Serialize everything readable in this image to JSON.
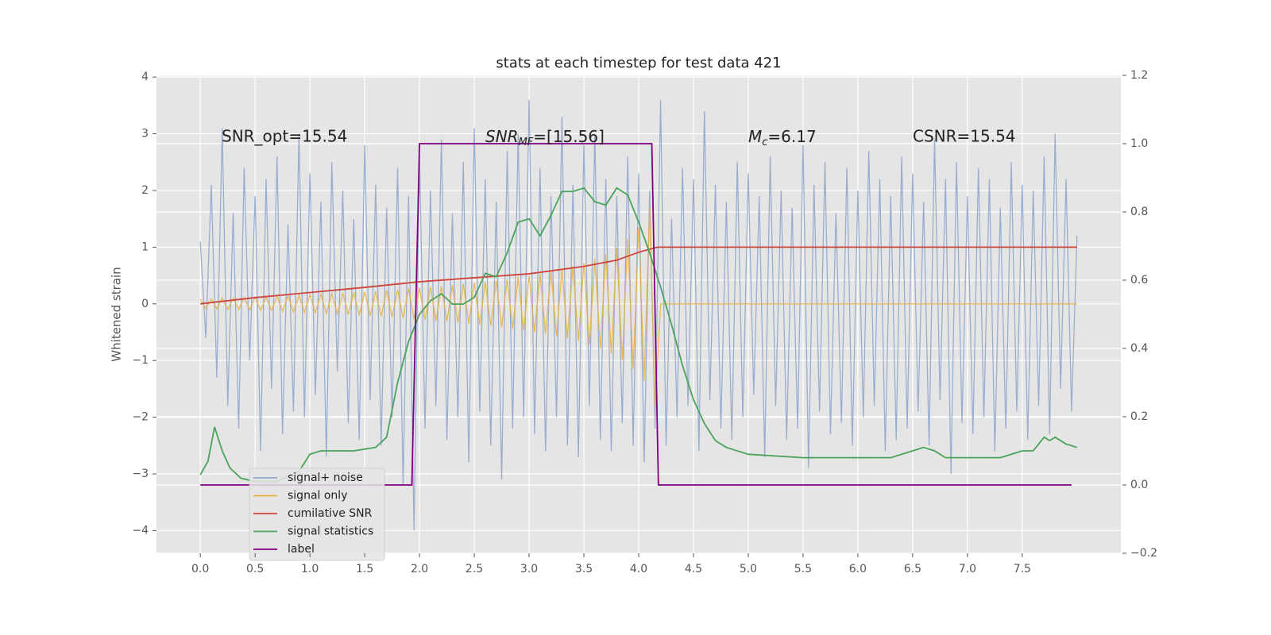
{
  "chart_data": {
    "type": "line",
    "title": "stats at each timestep for test data 421",
    "y_label": "Whitened strain",
    "annotations": [
      {
        "text": "SNR_opt=15.54"
      },
      {
        "text": "SNR",
        "sub": "MF",
        "rest": "=[15.56]"
      },
      {
        "text": "M",
        "sub": "c",
        "rest": "=6.17"
      },
      {
        "text": "CSNR=15.54"
      }
    ],
    "xlim": [
      -0.4,
      8.4
    ],
    "xticks": [
      {
        "value": 0,
        "label": "0.0"
      },
      0.5,
      {
        "value": 1,
        "label": "1.0"
      },
      1.5,
      {
        "value": 2,
        "label": "2.0"
      },
      2.5,
      {
        "value": 3,
        "label": "3.0"
      },
      3.5,
      {
        "value": 4,
        "label": "4.0"
      },
      4.5,
      {
        "value": 5,
        "label": "5.0"
      },
      5.5,
      {
        "value": 6,
        "label": "6.0"
      },
      6.5,
      {
        "value": 7,
        "label": "7.0"
      },
      7.5
    ],
    "ylim": [
      -4.4,
      4.03
    ],
    "yticks": [
      {
        "value": -4,
        "label": "−4"
      },
      {
        "value": -3,
        "label": "−3"
      },
      {
        "value": -2,
        "label": "−2"
      },
      {
        "value": -1,
        "label": "−1"
      },
      0,
      1,
      2,
      3,
      4
    ],
    "y2lim": [
      -0.2,
      1.2
    ],
    "y2ticks": [
      {
        "value": -0.2,
        "label": "−0.2"
      },
      {
        "value": 0,
        "label": "0.0"
      },
      0.2,
      0.4,
      0.6,
      0.8,
      {
        "value": 1,
        "label": "1.0"
      },
      1.2
    ],
    "grid": true,
    "legend": "lower left",
    "x": [
      0,
      0.05,
      0.1,
      0.15,
      0.2,
      0.25,
      0.3,
      0.35,
      0.4,
      0.45,
      0.5,
      0.55,
      0.6,
      0.65,
      0.7,
      0.75,
      0.8,
      0.85,
      0.9,
      0.95,
      1,
      1.05,
      1.1,
      1.15,
      1.2,
      1.25,
      1.3,
      1.35,
      1.4,
      1.45,
      1.5,
      1.55,
      1.6,
      1.65,
      1.7,
      1.75,
      1.8,
      1.85,
      1.9,
      1.95,
      2,
      2.05,
      2.1,
      2.15,
      2.2,
      2.25,
      2.3,
      2.35,
      2.4,
      2.45,
      2.5,
      2.55,
      2.6,
      2.65,
      2.7,
      2.75,
      2.8,
      2.85,
      2.9,
      2.95,
      3,
      3.05,
      3.1,
      3.15,
      3.2,
      3.25,
      3.3,
      3.35,
      3.4,
      3.45,
      3.5,
      3.55,
      3.6,
      3.65,
      3.7,
      3.75,
      3.8,
      3.85,
      3.9,
      3.95,
      4,
      4.05,
      4.1,
      4.15,
      4.2,
      4.25,
      4.3,
      4.35,
      4.4,
      4.45,
      4.5,
      4.55,
      4.6,
      4.65,
      4.7,
      4.75,
      4.8,
      4.85,
      4.9,
      4.95,
      5,
      5.05,
      5.1,
      5.15,
      5.2,
      5.25,
      5.3,
      5.35,
      5.4,
      5.45,
      5.5,
      5.55,
      5.6,
      5.65,
      5.7,
      5.75,
      5.8,
      5.85,
      5.9,
      5.95,
      6,
      6.05,
      6.1,
      6.15,
      6.2,
      6.25,
      6.3,
      6.35,
      6.4,
      6.45,
      6.5,
      6.55,
      6.6,
      6.65,
      6.7,
      6.75,
      6.8,
      6.85,
      6.9,
      6.95,
      7,
      7.05,
      7.1,
      7.15,
      7.2,
      7.25,
      7.3,
      7.35,
      7.4,
      7.45,
      7.5,
      7.55,
      7.6,
      7.65,
      7.7,
      7.75,
      7.8,
      7.85,
      7.9,
      7.95,
      8
    ],
    "series": [
      {
        "name": "signal+ noise",
        "color": "#91a6cc",
        "values": [
          1.1,
          -0.6,
          2.1,
          -1.3,
          3.1,
          -1.8,
          1.6,
          -2.2,
          2.4,
          -1.0,
          1.9,
          -2.6,
          2.2,
          -1.5,
          2.6,
          -2.3,
          1.4,
          -1.9,
          3.0,
          -2.0,
          2.3,
          -1.6,
          1.8,
          -2.7,
          2.5,
          -1.2,
          2.0,
          -2.1,
          1.5,
          -2.4,
          2.8,
          -1.7,
          2.1,
          -2.5,
          1.7,
          -2.0,
          2.4,
          -3.2,
          1.9,
          -4.0,
          2.6,
          -2.2,
          2.0,
          -1.8,
          2.9,
          -2.4,
          1.6,
          -2.0,
          2.5,
          -2.8,
          3.1,
          -1.9,
          2.2,
          -2.5,
          1.8,
          -3.1,
          2.7,
          -2.2,
          3.0,
          -2.0,
          3.6,
          -2.3,
          2.4,
          -2.6,
          1.9,
          -2.0,
          3.3,
          -2.5,
          2.1,
          -2.7,
          2.8,
          -1.8,
          3.0,
          -2.4,
          2.2,
          -2.6,
          1.9,
          -2.1,
          2.6,
          -2.5,
          2.3,
          -2.8,
          2.0,
          -2.2,
          3.6,
          -2.5,
          1.5,
          -2.0,
          2.4,
          -1.8,
          2.2,
          -2.6,
          3.4,
          -1.7,
          2.1,
          -2.2,
          1.8,
          -2.4,
          2.5,
          -2.0,
          2.3,
          -1.6,
          1.9,
          -2.7,
          2.6,
          -1.8,
          2.0,
          -2.4,
          1.7,
          -2.2,
          2.8,
          -2.9,
          2.1,
          -1.9,
          2.5,
          -2.3,
          1.6,
          -2.1,
          2.4,
          -2.5,
          2.0,
          -2.0,
          2.7,
          -1.8,
          2.2,
          -2.6,
          1.9,
          -2.4,
          2.6,
          -2.2,
          2.3,
          -1.9,
          1.8,
          -2.5,
          2.9,
          -1.7,
          2.2,
          -3.0,
          2.5,
          -2.1,
          1.9,
          -2.3,
          2.4,
          -2.0,
          2.2,
          -2.6,
          1.7,
          -2.2,
          2.5,
          -1.9,
          2.1,
          -2.4,
          2.0,
          -1.8,
          2.6,
          -2.3,
          3.0,
          -1.5,
          2.2,
          -1.9,
          1.2
        ]
      },
      {
        "name": "signal only",
        "color": "#e8b040",
        "values": [
          0.08,
          -0.08,
          0.09,
          -0.09,
          0.1,
          -0.1,
          0.1,
          -0.1,
          0.11,
          -0.11,
          0.12,
          -0.12,
          0.12,
          -0.12,
          0.13,
          -0.13,
          0.14,
          -0.14,
          0.15,
          -0.15,
          0.16,
          -0.16,
          0.17,
          -0.17,
          0.18,
          -0.18,
          0.19,
          -0.19,
          0.2,
          -0.2,
          0.21,
          -0.21,
          0.22,
          -0.22,
          0.24,
          -0.24,
          0.25,
          -0.25,
          0.27,
          -0.27,
          0.28,
          -0.28,
          0.3,
          -0.3,
          0.31,
          -0.31,
          0.33,
          -0.33,
          0.35,
          -0.35,
          0.37,
          -0.37,
          0.39,
          -0.39,
          0.41,
          -0.41,
          0.44,
          -0.44,
          0.47,
          -0.47,
          0.5,
          -0.5,
          0.53,
          -0.53,
          0.57,
          -0.57,
          0.61,
          -0.61,
          0.66,
          -0.66,
          0.72,
          -0.72,
          0.79,
          -0.79,
          0.88,
          -0.88,
          0.99,
          -0.99,
          1.15,
          -1.15,
          1.35,
          -1.35,
          1.7,
          -1.8,
          0,
          0,
          0,
          0,
          0,
          0,
          0,
          0,
          0,
          0,
          0,
          0,
          0,
          0,
          0,
          0,
          0,
          0,
          0,
          0,
          0,
          0,
          0,
          0,
          0,
          0,
          0,
          0,
          0,
          0,
          0,
          0,
          0,
          0,
          0,
          0,
          0,
          0,
          0,
          0,
          0,
          0,
          0,
          0,
          0,
          0,
          0,
          0,
          0,
          0,
          0,
          0,
          0,
          0,
          0,
          0,
          0,
          0,
          0,
          0,
          0,
          0,
          0,
          0,
          0,
          0,
          0,
          0,
          0,
          0,
          0,
          0,
          0,
          0,
          0,
          0,
          0
        ]
      },
      {
        "name": "cumilative SNR",
        "color": "#d0433a",
        "x": [
          0,
          0.5,
          1,
          1.5,
          2,
          2.5,
          3,
          3.5,
          3.8,
          4.0,
          4.17,
          8.0
        ],
        "values": [
          0,
          0.11,
          0.2,
          0.29,
          0.39,
          0.46,
          0.53,
          0.66,
          0.77,
          0.91,
          1.0,
          1.0
        ]
      },
      {
        "name": "signal statistics",
        "color": "#4aa35a",
        "axis": "y2",
        "x": [
          0,
          0.07,
          0.13,
          0.2,
          0.27,
          0.37,
          0.5,
          0.7,
          0.9,
          1.0,
          1.1,
          1.2,
          1.4,
          1.6,
          1.7,
          1.8,
          1.9,
          2.0,
          2.1,
          2.2,
          2.3,
          2.4,
          2.5,
          2.6,
          2.7,
          2.8,
          2.9,
          3.0,
          3.1,
          3.2,
          3.3,
          3.4,
          3.5,
          3.6,
          3.7,
          3.8,
          3.9,
          4.0,
          4.1,
          4.2,
          4.3,
          4.4,
          4.5,
          4.6,
          4.7,
          4.8,
          5.0,
          5.5,
          6.0,
          6.3,
          6.5,
          6.6,
          6.7,
          6.8,
          7.0,
          7.3,
          7.5,
          7.6,
          7.7,
          7.75,
          7.8,
          7.9,
          8.0
        ],
        "values": [
          0.03,
          0.07,
          0.17,
          0.1,
          0.05,
          0.02,
          0.01,
          0.01,
          0.04,
          0.09,
          0.1,
          0.1,
          0.1,
          0.11,
          0.14,
          0.3,
          0.42,
          0.5,
          0.54,
          0.56,
          0.53,
          0.53,
          0.55,
          0.62,
          0.61,
          0.68,
          0.77,
          0.78,
          0.73,
          0.79,
          0.86,
          0.86,
          0.87,
          0.83,
          0.82,
          0.87,
          0.85,
          0.77,
          0.68,
          0.58,
          0.47,
          0.35,
          0.25,
          0.18,
          0.13,
          0.11,
          0.09,
          0.08,
          0.08,
          0.08,
          0.1,
          0.11,
          0.1,
          0.08,
          0.08,
          0.08,
          0.1,
          0.1,
          0.14,
          0.13,
          0.14,
          0.12,
          0.11
        ]
      },
      {
        "name": "label",
        "color": "#800080",
        "axis": "y2",
        "x": [
          0,
          1.93,
          2.0,
          4.12,
          4.18,
          7.95
        ],
        "values": [
          0,
          0,
          1,
          1,
          0,
          0
        ]
      }
    ]
  }
}
